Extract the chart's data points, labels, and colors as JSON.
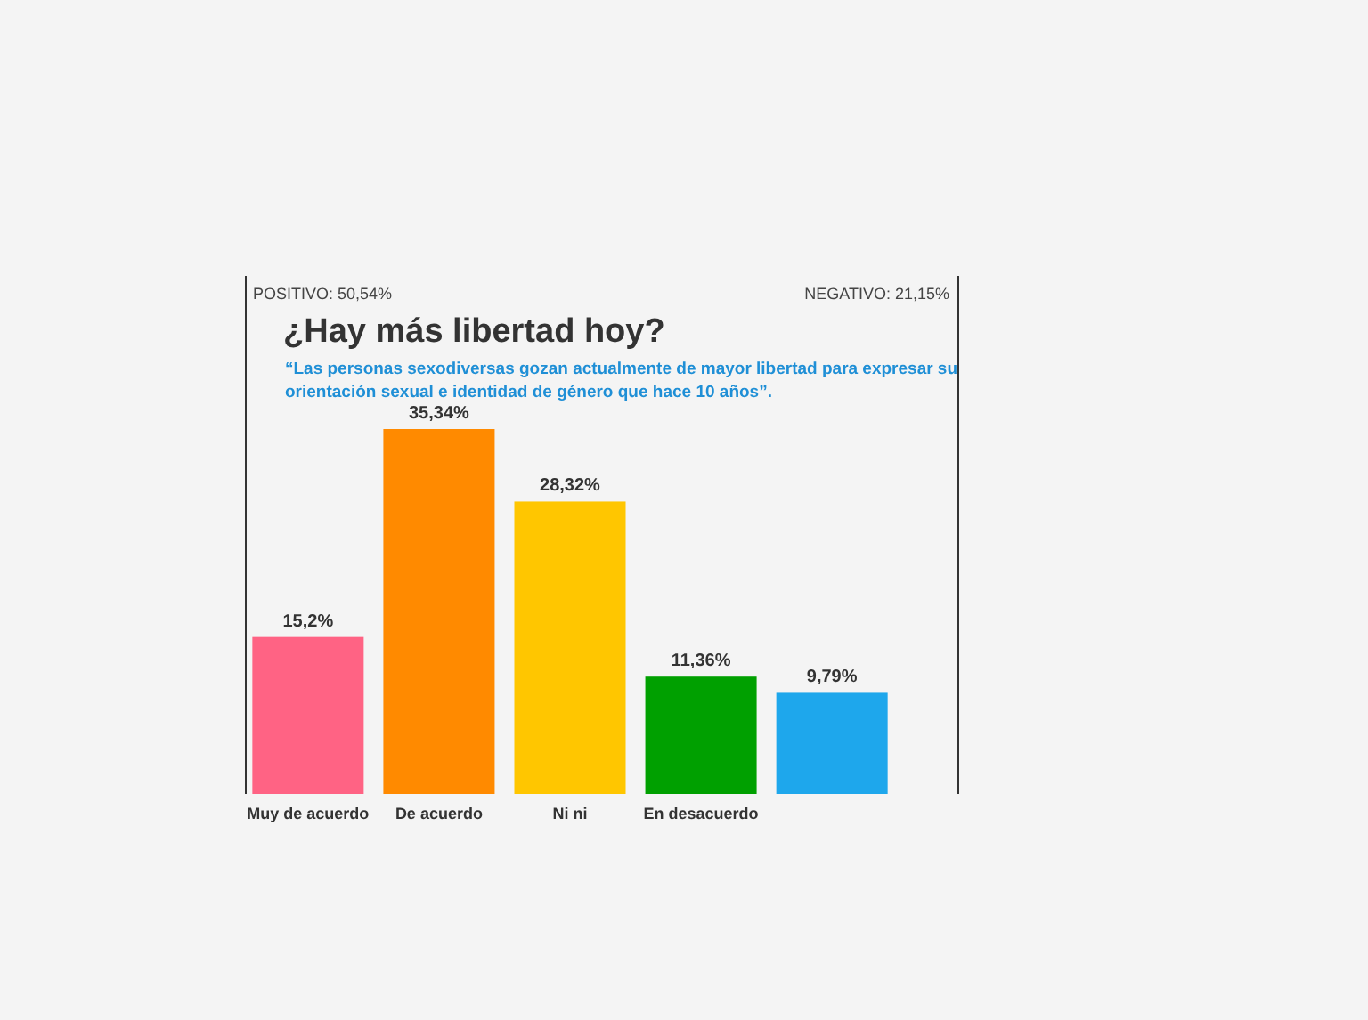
{
  "chart_data": {
    "type": "bar",
    "title": "¿Hay más libertad hoy?",
    "subtitle": "“Las personas sexodiversas gozan actualmente de mayor libertad para expresar su orientación sexual e identidad de género que hace 10 años”.",
    "annotations": [
      "POSITIVO: 50,54%",
      "NEGATIVO: 21,15%"
    ],
    "categories": [
      "Muy de acuerdo",
      "De acuerdo",
      "Ni ni",
      "En desacuerdo",
      null
    ],
    "values": [
      15.2,
      35.34,
      28.32,
      11.36,
      9.79
    ],
    "value_labels": [
      "15,2%",
      "35,34%",
      "28,32%",
      "11,36%",
      "9,79%"
    ],
    "colors": [
      "#ff6384",
      "#ff8a00",
      "#ffc600",
      "#00a000",
      "#1ea7ec"
    ]
  }
}
